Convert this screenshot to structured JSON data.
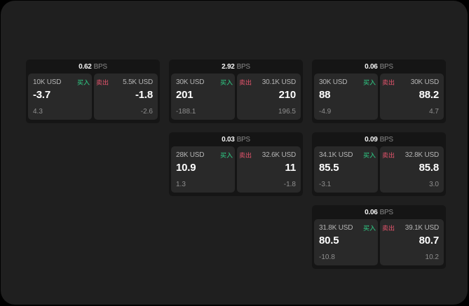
{
  "theme": {
    "outside_bg": "#000000",
    "screen_bg": "#1f1f1f",
    "card_bg": "#151515",
    "panel_bg": "#292929",
    "header_value_color": "#f5f5f5",
    "header_unit_color": "#8a8a8a",
    "size_color": "#b5b5b5",
    "value_color": "#ffffff",
    "sub_color": "#8f8f8f",
    "buy_color": "#2ebd7d",
    "sell_color": "#cb4e63"
  },
  "labels": {
    "bps_unit": "BPS",
    "buy": "买入",
    "sell": "卖出"
  },
  "cards": [
    {
      "row": 1,
      "col": 1,
      "bps": "0.62",
      "buy": {
        "size": "10K USD",
        "value": "-3.7",
        "sub": "4.3"
      },
      "sell": {
        "size": "5.5K USD",
        "value": "-1.8",
        "sub": "-2.6"
      }
    },
    {
      "row": 1,
      "col": 2,
      "bps": "2.92",
      "buy": {
        "size": "30K USD",
        "value": "201",
        "sub": "-188.1"
      },
      "sell": {
        "size": "30.1K USD",
        "value": "210",
        "sub": "196.5"
      }
    },
    {
      "row": 1,
      "col": 3,
      "bps": "0.06",
      "buy": {
        "size": "30K USD",
        "value": "88",
        "sub": "-4.9"
      },
      "sell": {
        "size": "30K USD",
        "value": "88.2",
        "sub": "4.7"
      }
    },
    {
      "row": 2,
      "col": 2,
      "bps": "0.03",
      "buy": {
        "size": "28K USD",
        "value": "10.9",
        "sub": "1.3"
      },
      "sell": {
        "size": "32.6K USD",
        "value": "11",
        "sub": "-1.8"
      }
    },
    {
      "row": 2,
      "col": 3,
      "bps": "0.09",
      "buy": {
        "size": "34.1K USD",
        "value": "85.5",
        "sub": "-3.1"
      },
      "sell": {
        "size": "32.8K USD",
        "value": "85.8",
        "sub": "3.0"
      }
    },
    {
      "row": 3,
      "col": 3,
      "bps": "0.06",
      "buy": {
        "size": "31.8K USD",
        "value": "80.5",
        "sub": "-10.8"
      },
      "sell": {
        "size": "39.1K USD",
        "value": "80.7",
        "sub": "10.2"
      }
    }
  ]
}
